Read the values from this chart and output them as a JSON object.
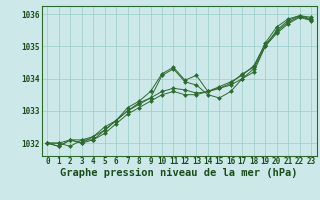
{
  "title": "Graphe pression niveau de la mer (hPa)",
  "xlabel_hours": [
    0,
    1,
    2,
    3,
    4,
    5,
    6,
    7,
    8,
    9,
    10,
    11,
    12,
    13,
    14,
    15,
    16,
    17,
    18,
    19,
    20,
    21,
    22,
    23
  ],
  "series": [
    [
      1032.0,
      1032.0,
      1031.9,
      1032.1,
      1032.1,
      1032.3,
      1032.6,
      1032.9,
      1033.1,
      1033.3,
      1033.5,
      1033.6,
      1033.5,
      1033.5,
      1033.6,
      1033.7,
      1033.8,
      1034.0,
      1034.2,
      1035.0,
      1035.4,
      1035.7,
      1035.9,
      1035.8
    ],
    [
      1032.0,
      1031.9,
      1032.1,
      1032.0,
      1032.1,
      1032.4,
      1032.7,
      1033.0,
      1033.2,
      1033.4,
      1034.1,
      1034.3,
      1033.9,
      1033.8,
      1033.5,
      1033.4,
      1033.6,
      1034.0,
      1034.3,
      1035.0,
      1035.5,
      1035.8,
      1035.95,
      1035.85
    ],
    [
      1032.0,
      1031.9,
      1032.1,
      1032.0,
      1032.2,
      1032.5,
      1032.7,
      1033.1,
      1033.3,
      1033.6,
      1034.15,
      1034.35,
      1033.95,
      1034.1,
      1033.6,
      1033.7,
      1033.85,
      1034.15,
      1034.35,
      1035.1,
      1035.6,
      1035.85,
      1035.95,
      1035.9
    ],
    [
      1032.0,
      1032.0,
      1032.1,
      1032.1,
      1032.2,
      1032.4,
      1032.7,
      1033.0,
      1033.25,
      1033.4,
      1033.6,
      1033.7,
      1033.65,
      1033.55,
      1033.6,
      1033.75,
      1033.9,
      1034.1,
      1034.4,
      1035.05,
      1035.45,
      1035.75,
      1035.92,
      1035.82
    ]
  ],
  "line_color": "#2d6a2d",
  "marker_color": "#2d6a2d",
  "bg_color": "#cce8e8",
  "grid_color": "#99cccc",
  "axis_color": "#2d6a2d",
  "text_color": "#1a4d1a",
  "ylim": [
    1031.6,
    1036.25
  ],
  "yticks": [
    1032,
    1033,
    1034,
    1035,
    1036
  ],
  "title_fontsize": 7.5,
  "tick_fontsize": 5.5
}
